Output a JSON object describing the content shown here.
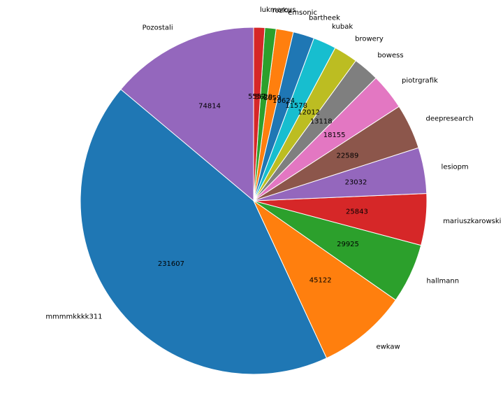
{
  "chart_data": {
    "type": "pie",
    "title": "",
    "start_angle_deg": 90,
    "direction": "counterclockwise",
    "label_style": "names outside, values inside",
    "slices": [
      {
        "label": "Pozostali",
        "value": 74814,
        "color": "#9467bd"
      },
      {
        "label": "mmmmkkkk311",
        "value": 231607,
        "color": "#1f77b4"
      },
      {
        "label": "ewkaw",
        "value": 45122,
        "color": "#ff7f0e"
      },
      {
        "label": "hallmann",
        "value": 29925,
        "color": "#2ca02c"
      },
      {
        "label": "mariuszkarowski",
        "value": 25843,
        "color": "#d62728"
      },
      {
        "label": "lesiopm",
        "value": 23032,
        "color": "#9467bd"
      },
      {
        "label": "deepresearch",
        "value": 22589,
        "color": "#8c564b"
      },
      {
        "label": "piotrgrafik",
        "value": 18155,
        "color": "#e377c2"
      },
      {
        "label": "bowess",
        "value": 13118,
        "color": "#7f7f7f"
      },
      {
        "label": "browery",
        "value": 12012,
        "color": "#bcbd22"
      },
      {
        "label": "kubak",
        "value": 11578,
        "color": "#17becf"
      },
      {
        "label": "bartheek",
        "value": 10624,
        "color": "#1f77b4"
      },
      {
        "label": "emsonic",
        "value": 8659,
        "color": "#ff7f0e"
      },
      {
        "label": "rozku",
        "value": 5629,
        "color": "#2ca02c"
      },
      {
        "label": "lukmarcus",
        "value": 5557,
        "color": "#d62728"
      }
    ]
  }
}
